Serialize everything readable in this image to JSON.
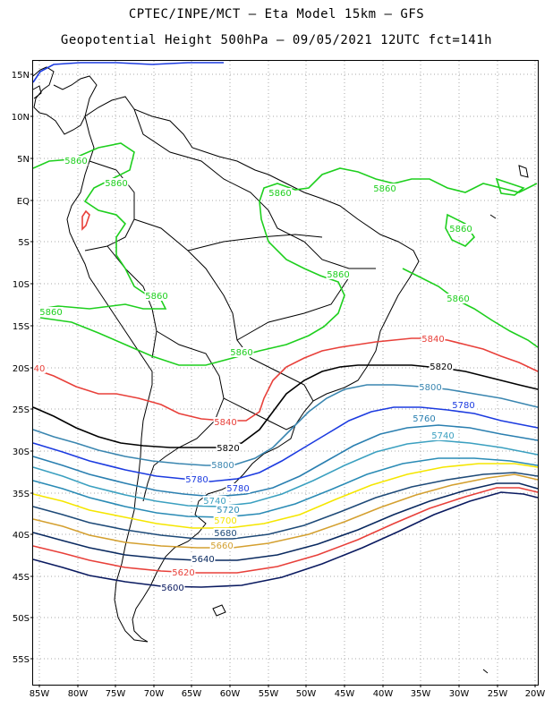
{
  "title_line1": "CPTEC/INPE/MCT –  Eta Model 15km – GFS",
  "title_line2": "Geopotential Height 500hPa – 09/05/2021 12UTC fct=141h",
  "lat_labels": [
    "15N",
    "10N",
    "5N",
    "EQ",
    "5S",
    "10S",
    "15S",
    "20S",
    "25S",
    "30S",
    "35S",
    "40S",
    "45S",
    "50S",
    "55S"
  ],
  "lon_labels": [
    "85W",
    "80W",
    "75W",
    "70W",
    "65W",
    "60W",
    "55W",
    "50W",
    "45W",
    "40W",
    "35W",
    "30W",
    "25W",
    "20W"
  ],
  "colors": {
    "5860": "#1ecf1e",
    "5840": "#e8403a",
    "5820": "#000000",
    "5800": "#3a86b0",
    "5780": "#1c3be0",
    "5760": "#2a7fb0",
    "5740": "#3ba0c0",
    "5720": "#2a8bb5",
    "5700": "#f5e600",
    "5680": "#1e4a78",
    "5660": "#d4a030",
    "5640": "#0a2a60",
    "5620": "#e8403a",
    "5600": "#0a1a60",
    "coast": "#000000",
    "grid": "#aaaaaa"
  },
  "contour_labels": [
    {
      "text": "5860",
      "c": "5860"
    },
    {
      "text": "5860",
      "c": "5860"
    },
    {
      "text": "5860",
      "c": "5860"
    },
    {
      "text": "5860",
      "c": "5860"
    },
    {
      "text": "5860",
      "c": "5860"
    },
    {
      "text": "5860",
      "c": "5860"
    },
    {
      "text": "5860",
      "c": "5860"
    },
    {
      "text": "5860",
      "c": "5860"
    },
    {
      "text": "5860",
      "c": "5860"
    },
    {
      "text": "5860",
      "c": "5860"
    },
    {
      "text": "5840",
      "c": "5840"
    },
    {
      "text": "5840",
      "c": "5840"
    },
    {
      "text": "40",
      "c": "5840"
    },
    {
      "text": "5820",
      "c": "5820"
    },
    {
      "text": "5820",
      "c": "5820"
    },
    {
      "text": "5800",
      "c": "5800"
    },
    {
      "text": "5800",
      "c": "5800"
    },
    {
      "text": "5780",
      "c": "5780"
    },
    {
      "text": "5780",
      "c": "5780"
    },
    {
      "text": "5780",
      "c": "5780"
    },
    {
      "text": "5760",
      "c": "5760"
    },
    {
      "text": "5740",
      "c": "5740"
    },
    {
      "text": "5740",
      "c": "5740"
    },
    {
      "text": "5720",
      "c": "5720"
    },
    {
      "text": "5700",
      "c": "5700"
    },
    {
      "text": "5680",
      "c": "5680"
    },
    {
      "text": "5660",
      "c": "5660"
    },
    {
      "text": "5640",
      "c": "5640"
    },
    {
      "text": "5620",
      "c": "5620"
    },
    {
      "text": "5600",
      "c": "5600"
    }
  ]
}
